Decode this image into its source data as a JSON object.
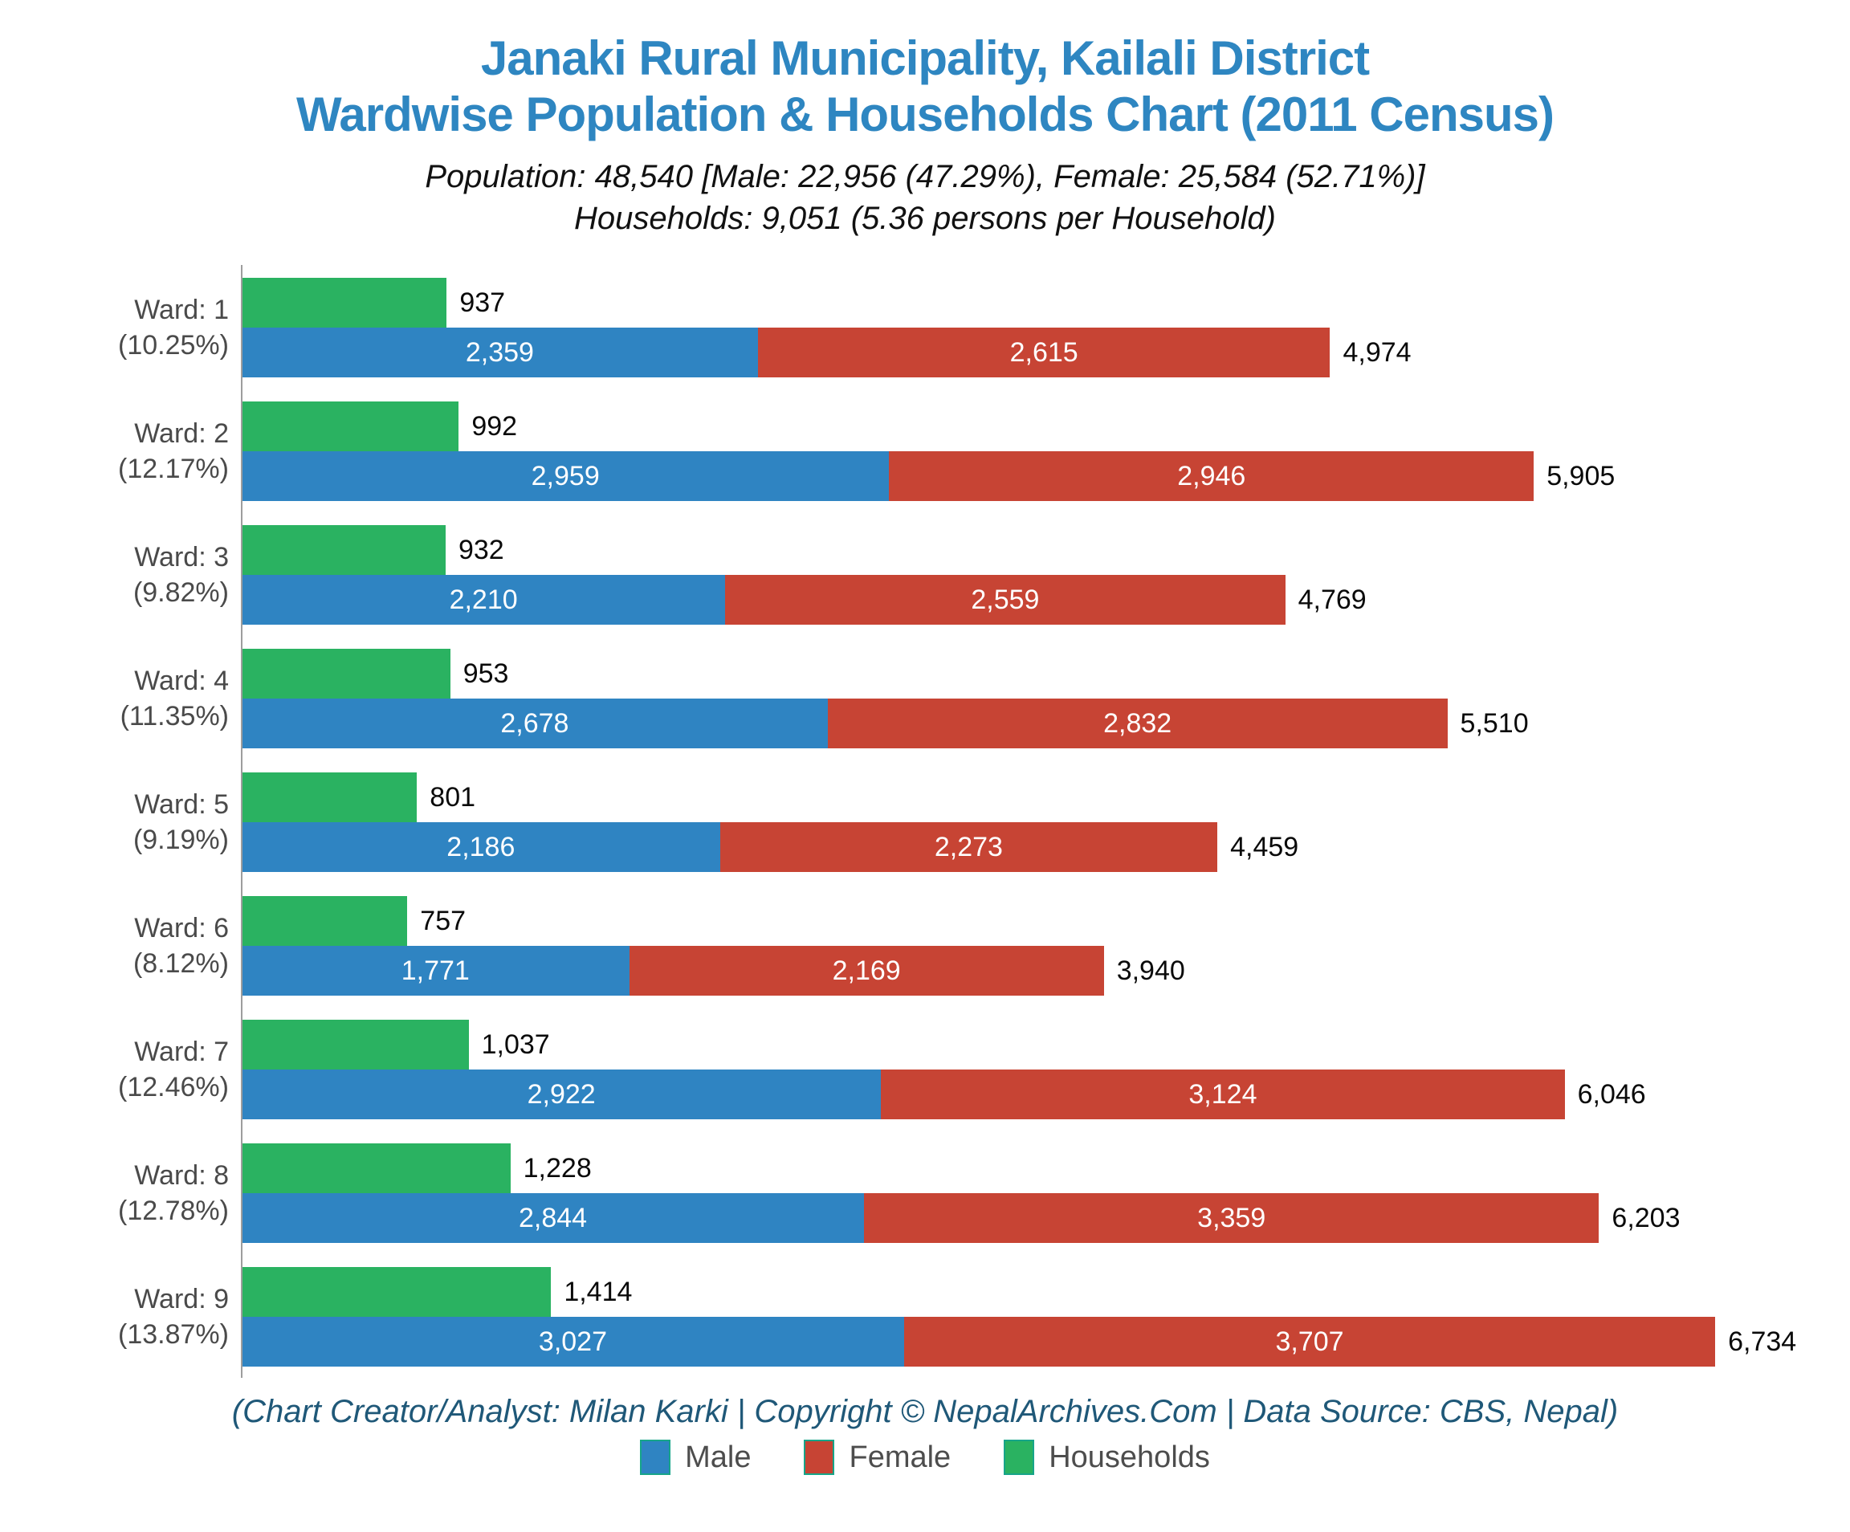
{
  "title": {
    "line1": "Janaki Rural Municipality, Kailali District",
    "line2": "Wardwise Population & Households Chart (2011 Census)"
  },
  "subtitle": {
    "line1": "Population: 48,540 [Male: 22,956 (47.29%), Female: 25,584 (52.71%)]",
    "line2": "Households: 9,051 (5.36 persons per Household)"
  },
  "footer": {
    "text": "(Chart Creator/Analyst: Milan Karki | Copyright © NepalArchives.Com | Data Source: CBS, Nepal)"
  },
  "colors": {
    "male": "#2f84c2",
    "female": "#c74434",
    "households": "#2ab261",
    "title": "#2e86c1",
    "footer_text": "#1f5878",
    "axis": "#9d9d9d",
    "ward_label": "#4a4a4a",
    "swatch_border": "#17a589"
  },
  "legend": [
    {
      "label": "Male",
      "color": "#2f84c2"
    },
    {
      "label": "Female",
      "color": "#c74434"
    },
    {
      "label": "Households",
      "color": "#2ab261"
    }
  ],
  "chart_data": {
    "type": "bar",
    "orientation": "horizontal",
    "title": "Janaki Rural Municipality, Kailali District — Wardwise Population & Households Chart (2011 Census)",
    "xlabel": "",
    "ylabel": "Ward",
    "x_axis_range": [
      0,
      7350
    ],
    "grid": false,
    "legend_position": "bottom",
    "categories": [
      "Ward: 1",
      "Ward: 2",
      "Ward: 3",
      "Ward: 4",
      "Ward: 5",
      "Ward: 6",
      "Ward: 7",
      "Ward: 8",
      "Ward: 9"
    ],
    "series": [
      {
        "name": "Male",
        "values": [
          2359,
          2959,
          2210,
          2678,
          2186,
          1771,
          2922,
          2844,
          3027
        ]
      },
      {
        "name": "Female",
        "values": [
          2615,
          2946,
          2559,
          2832,
          2273,
          2169,
          3124,
          3359,
          3707
        ]
      },
      {
        "name": "Households",
        "values": [
          937,
          992,
          932,
          953,
          801,
          757,
          1037,
          1228,
          1414
        ]
      }
    ],
    "wards": [
      {
        "ward": "Ward: 1",
        "percent": "(10.25%)",
        "households": 937,
        "male": 2359,
        "female": 2615,
        "total": 4974,
        "households_label": "937",
        "male_label": "2,359",
        "female_label": "2,615",
        "total_label": "4,974"
      },
      {
        "ward": "Ward: 2",
        "percent": "(12.17%)",
        "households": 992,
        "male": 2959,
        "female": 2946,
        "total": 5905,
        "households_label": "992",
        "male_label": "2,959",
        "female_label": "2,946",
        "total_label": "5,905"
      },
      {
        "ward": "Ward: 3",
        "percent": "(9.82%)",
        "households": 932,
        "male": 2210,
        "female": 2559,
        "total": 4769,
        "households_label": "932",
        "male_label": "2,210",
        "female_label": "2,559",
        "total_label": "4,769"
      },
      {
        "ward": "Ward: 4",
        "percent": "(11.35%)",
        "households": 953,
        "male": 2678,
        "female": 2832,
        "total": 5510,
        "households_label": "953",
        "male_label": "2,678",
        "female_label": "2,832",
        "total_label": "5,510"
      },
      {
        "ward": "Ward: 5",
        "percent": "(9.19%)",
        "households": 801,
        "male": 2186,
        "female": 2273,
        "total": 4459,
        "households_label": "801",
        "male_label": "2,186",
        "female_label": "2,273",
        "total_label": "4,459"
      },
      {
        "ward": "Ward: 6",
        "percent": "(8.12%)",
        "households": 757,
        "male": 1771,
        "female": 2169,
        "total": 3940,
        "households_label": "757",
        "male_label": "1,771",
        "female_label": "2,169",
        "total_label": "3,940"
      },
      {
        "ward": "Ward: 7",
        "percent": "(12.46%)",
        "households": 1037,
        "male": 2922,
        "female": 3124,
        "total": 6046,
        "households_label": "1,037",
        "male_label": "2,922",
        "female_label": "3,124",
        "total_label": "6,046"
      },
      {
        "ward": "Ward: 8",
        "percent": "(12.78%)",
        "households": 1228,
        "male": 2844,
        "female": 3359,
        "total": 6203,
        "households_label": "1,228",
        "male_label": "2,844",
        "female_label": "3,359",
        "total_label": "6,203"
      },
      {
        "ward": "Ward: 9",
        "percent": "(13.87%)",
        "households": 1414,
        "male": 3027,
        "female": 3707,
        "total": 6734,
        "households_label": "1,414",
        "male_label": "3,027",
        "female_label": "3,707",
        "total_label": "6,734"
      }
    ]
  }
}
